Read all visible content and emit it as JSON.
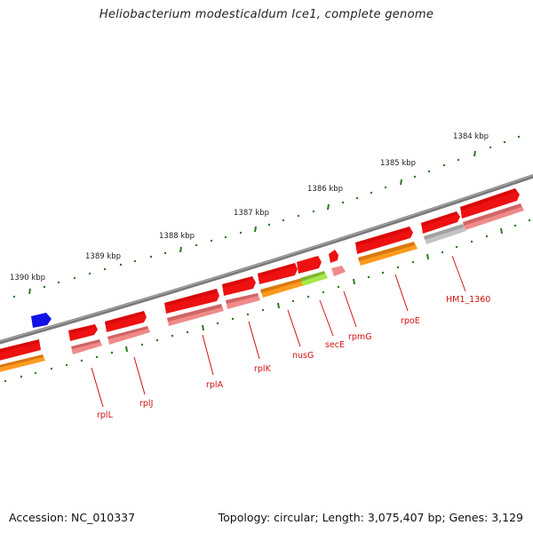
{
  "title": "Heliobacterium modesticaldum Ice1, complete genome",
  "accession_text": "Accession: NC_010337",
  "topology_text": "Topology: circular; Length: 3,075,407 bp; Genes: 3,129",
  "ruler_labels": [
    "1390 kbp",
    "1389 kbp",
    "1388 kbp",
    "1387 kbp",
    "1386 kbp",
    "1385 kbp",
    "1384 kbp"
  ],
  "gene_labels": [
    "rplL",
    "rplJ",
    "rplA",
    "rplK",
    "nusG",
    "secE",
    "rpmG",
    "rpoE",
    "HM1_1360"
  ],
  "colors": {
    "backbone": "#7a7a7a",
    "gene_forward": "#ee1111",
    "gene_rna": "#f08a8a",
    "cds_orange": "#ff9a1e",
    "cds_green": "#a6e84a",
    "cds_grey": "#c3c3c3",
    "cds_blue": "#1212e6",
    "tick": "#2a7a1e",
    "label": "#d01010"
  }
}
